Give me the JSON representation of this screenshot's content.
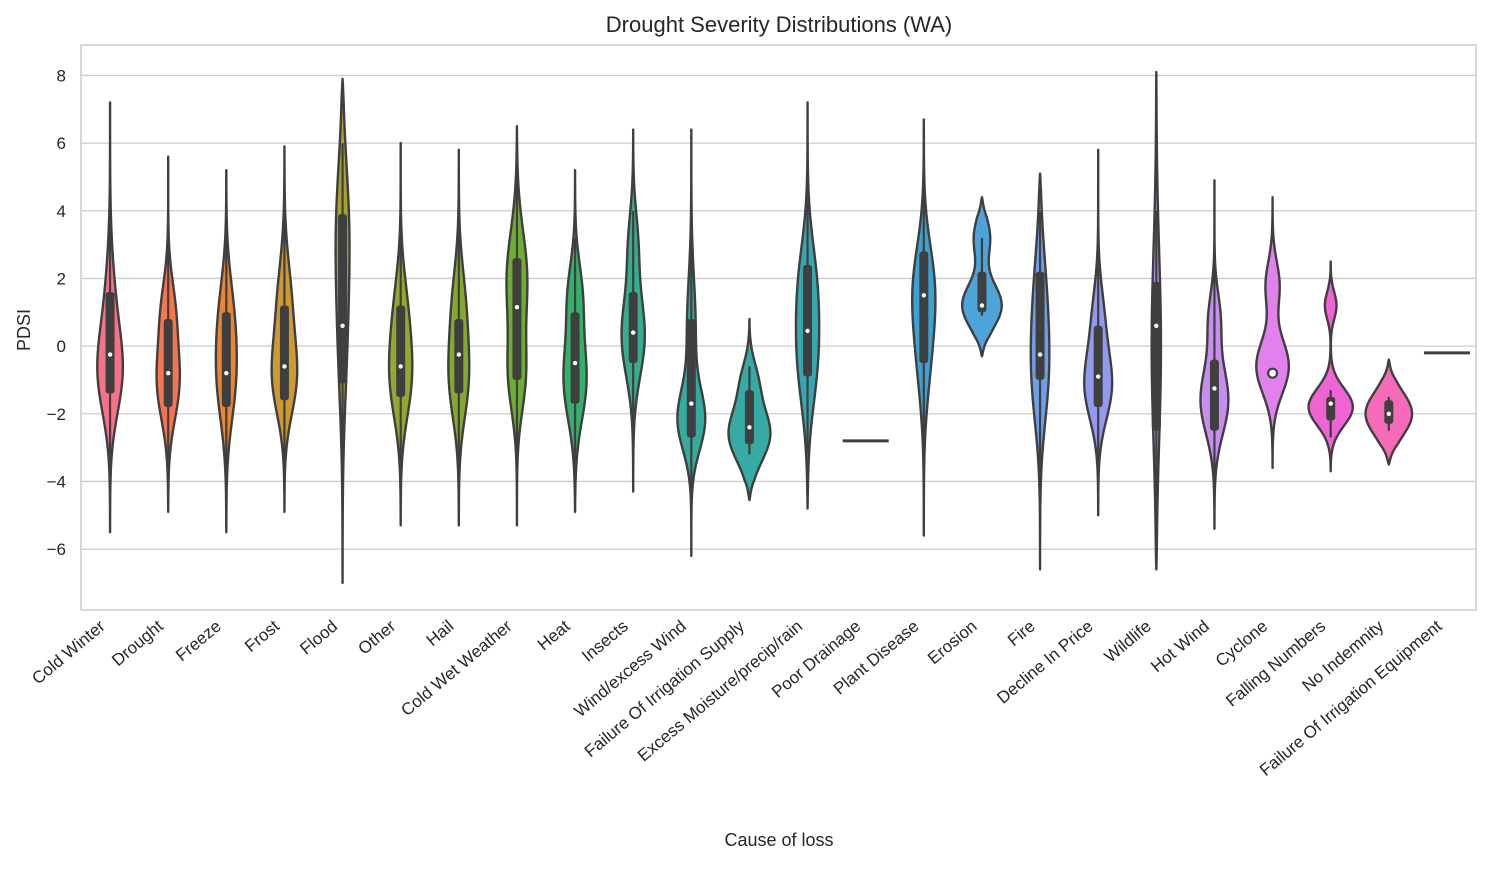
{
  "chart_data": {
    "type": "violin",
    "title": "Drought Severity Distributions (WA)",
    "xlabel": "Cause of loss",
    "ylabel": "PDSI",
    "ylim": [
      -7.8,
      8.9
    ],
    "yticks": [
      -6,
      -4,
      -2,
      0,
      2,
      4,
      6,
      8
    ],
    "grid": true,
    "legend": "none",
    "categories": [
      {
        "name": "Cold Winter",
        "color": "#f77189",
        "min": -5.5,
        "max": 7.2,
        "q1": -1.4,
        "median": -0.25,
        "q3": 1.6,
        "wlo": -3.5,
        "whi": 4.5,
        "peaks": [
          {
            "y": -0.9,
            "w": 0.55,
            "s": 1.2
          },
          {
            "y": 0.8,
            "w": 0.3,
            "s": 1.6
          }
        ]
      },
      {
        "name": "Drought",
        "color": "#f7754f",
        "min": -4.9,
        "max": 5.6,
        "q1": -1.8,
        "median": -0.8,
        "q3": 0.8,
        "wlo": -3.5,
        "whi": 3.2,
        "peaks": [
          {
            "y": -1.1,
            "w": 0.5,
            "s": 1.1
          },
          {
            "y": 1.0,
            "w": 0.3,
            "s": 1.0
          }
        ]
      },
      {
        "name": "Freeze",
        "color": "#e98533",
        "min": -5.5,
        "max": 5.2,
        "q1": -1.8,
        "median": -0.8,
        "q3": 1.0,
        "wlo": -3.8,
        "whi": 3.3,
        "peaks": [
          {
            "y": -1.0,
            "w": 0.45,
            "s": 1.3
          },
          {
            "y": 1.0,
            "w": 0.3,
            "s": 1.2
          }
        ]
      },
      {
        "name": "Frost",
        "color": "#cc9932",
        "min": -4.9,
        "max": 5.9,
        "q1": -1.6,
        "median": -0.6,
        "q3": 1.2,
        "wlo": -3.6,
        "whi": 3.8,
        "peaks": [
          {
            "y": -1.0,
            "w": 0.55,
            "s": 1.1
          },
          {
            "y": 1.2,
            "w": 0.35,
            "s": 1.3
          }
        ]
      },
      {
        "name": "Flood",
        "color": "#a8a031",
        "min": -7.0,
        "max": 7.9,
        "q1": -1.1,
        "median": 0.6,
        "q3": 3.9,
        "wlo": -3.5,
        "whi": 6.0,
        "peaks": [
          {
            "y": 3.5,
            "w": 0.3,
            "s": 2.0
          },
          {
            "y": 0.0,
            "w": 0.18,
            "s": 2.0
          }
        ]
      },
      {
        "name": "Other",
        "color": "#99a531",
        "min": -5.3,
        "max": 6.0,
        "q1": -1.5,
        "median": -0.6,
        "q3": 1.2,
        "wlo": -3.5,
        "whi": 4.0,
        "peaks": [
          {
            "y": -1.0,
            "w": 0.5,
            "s": 1.2
          },
          {
            "y": 1.0,
            "w": 0.3,
            "s": 1.2
          }
        ]
      },
      {
        "name": "Hail",
        "color": "#86a831",
        "min": -5.3,
        "max": 5.8,
        "q1": -1.4,
        "median": -0.25,
        "q3": 0.8,
        "wlo": -3.5,
        "whi": 3.3,
        "peaks": [
          {
            "y": -1.0,
            "w": 0.45,
            "s": 1.2
          },
          {
            "y": 1.2,
            "w": 0.3,
            "s": 1.2
          }
        ]
      },
      {
        "name": "Cold Wet Weather",
        "color": "#6eac32",
        "min": -5.3,
        "max": 6.5,
        "q1": -1.0,
        "median": 1.15,
        "q3": 2.6,
        "wlo": -3.5,
        "whi": 5.0,
        "peaks": [
          {
            "y": 2.0,
            "w": 0.45,
            "s": 1.4
          },
          {
            "y": -0.9,
            "w": 0.35,
            "s": 1.1
          }
        ]
      },
      {
        "name": "Heat",
        "color": "#33b06a",
        "min": -4.9,
        "max": 5.2,
        "q1": -1.7,
        "median": -0.5,
        "q3": 1.0,
        "wlo": -3.5,
        "whi": 3.2,
        "peaks": [
          {
            "y": -1.0,
            "w": 0.5,
            "s": 1.2
          },
          {
            "y": 1.5,
            "w": 0.3,
            "s": 1.0
          }
        ]
      },
      {
        "name": "Insects",
        "color": "#34ae8f",
        "min": -4.3,
        "max": 6.4,
        "q1": -0.5,
        "median": 0.4,
        "q3": 1.6,
        "wlo": -2.5,
        "whi": 4.0,
        "peaks": [
          {
            "y": 0.3,
            "w": 0.5,
            "s": 1.2
          },
          {
            "y": 3.0,
            "w": 0.2,
            "s": 1.0
          }
        ]
      },
      {
        "name": "Wind/excess Wind",
        "color": "#35ab9d",
        "min": -6.2,
        "max": 6.4,
        "q1": -2.7,
        "median": -1.7,
        "q3": 0.8,
        "wlo": -4.2,
        "whi": 3.2,
        "peaks": [
          {
            "y": -2.2,
            "w": 0.6,
            "s": 0.9
          },
          {
            "y": 0.5,
            "w": 0.2,
            "s": 1.5
          }
        ]
      },
      {
        "name": "Failure Of Irrigation Supply",
        "color": "#36aaa5",
        "min": -4.55,
        "max": 0.8,
        "q1": -2.9,
        "median": -2.4,
        "q3": -1.3,
        "wlo": -3.2,
        "whi": -0.6,
        "peaks": [
          {
            "y": -2.6,
            "w": 0.9,
            "s": 0.8
          },
          {
            "y": -1.0,
            "w": 0.3,
            "s": 0.6
          }
        ]
      },
      {
        "name": "Excess Moisture/precip/rain",
        "color": "#37a8b1",
        "min": -4.8,
        "max": 7.2,
        "q1": -0.9,
        "median": 0.45,
        "q3": 2.4,
        "wlo": -3.2,
        "whi": 4.6,
        "peaks": [
          {
            "y": -0.3,
            "w": 0.5,
            "s": 1.5
          },
          {
            "y": 2.0,
            "w": 0.35,
            "s": 1.3
          }
        ]
      },
      {
        "name": "Poor Drainage",
        "color": "#38a6be",
        "min": -2.8,
        "max": -2.8,
        "flat": true
      },
      {
        "name": "Plant Disease",
        "color": "#3aa3d3",
        "min": -5.6,
        "max": 6.7,
        "q1": -0.5,
        "median": 1.5,
        "q3": 2.8,
        "wlo": -3.0,
        "whi": 4.8,
        "peaks": [
          {
            "y": 1.8,
            "w": 0.5,
            "s": 1.3
          },
          {
            "y": -0.3,
            "w": 0.3,
            "s": 1.4
          }
        ]
      },
      {
        "name": "Erosion",
        "color": "#4ca4d9",
        "min": -0.3,
        "max": 4.4,
        "q1": 1.0,
        "median": 1.2,
        "q3": 2.2,
        "wlo": 0.9,
        "whi": 3.2,
        "peaks": [
          {
            "y": 1.2,
            "w": 0.85,
            "s": 0.65
          },
          {
            "y": 3.2,
            "w": 0.35,
            "s": 0.6
          }
        ]
      },
      {
        "name": "Fire",
        "color": "#6f9fe6",
        "min": -6.6,
        "max": 5.1,
        "q1": -1.0,
        "median": -0.25,
        "q3": 2.2,
        "wlo": -3.8,
        "whi": 4.0,
        "peaks": [
          {
            "y": 1.0,
            "w": 0.4,
            "s": 1.8
          },
          {
            "y": -1.2,
            "w": 0.3,
            "s": 1.4
          }
        ]
      },
      {
        "name": "Decline In Price",
        "color": "#9399ed",
        "min": -5.0,
        "max": 5.8,
        "q1": -1.8,
        "median": -0.9,
        "q3": 0.6,
        "wlo": -3.8,
        "whi": 2.6,
        "peaks": [
          {
            "y": -1.2,
            "w": 0.6,
            "s": 1.0
          },
          {
            "y": 0.8,
            "w": 0.25,
            "s": 1.0
          }
        ]
      },
      {
        "name": "Wildlife",
        "color": "#b58ff0",
        "min": -6.6,
        "max": 8.1,
        "q1": -2.5,
        "median": 0.6,
        "q3": 1.9,
        "wlo": -4.5,
        "whi": 4.0,
        "peaks": [
          {
            "y": 0.0,
            "w": 0.2,
            "s": 2.8
          }
        ]
      },
      {
        "name": "Hot Wind",
        "color": "#c98df0",
        "min": -5.4,
        "max": 4.9,
        "q1": -2.5,
        "median": -1.25,
        "q3": -0.4,
        "wlo": -3.9,
        "whi": 2.3,
        "peaks": [
          {
            "y": -1.6,
            "w": 0.6,
            "s": 1.0
          },
          {
            "y": 0.8,
            "w": 0.25,
            "s": 0.8
          }
        ]
      },
      {
        "name": "Cyclone",
        "color": "#e280ec",
        "min": -3.6,
        "max": 4.4,
        "q1": -0.8,
        "median": -0.8,
        "q3": -0.8,
        "wlo": -0.8,
        "whi": -0.8,
        "peaks": [
          {
            "y": -0.6,
            "w": 0.7,
            "s": 0.8
          },
          {
            "y": 1.8,
            "w": 0.3,
            "s": 0.7
          }
        ]
      },
      {
        "name": "Falling Numbers",
        "color": "#f063d5",
        "min": -3.7,
        "max": 2.5,
        "q1": -2.2,
        "median": -1.7,
        "q3": -1.5,
        "wlo": -2.7,
        "whi": -1.3,
        "peaks": [
          {
            "y": -1.8,
            "w": 0.95,
            "s": 0.55
          },
          {
            "y": 1.2,
            "w": 0.25,
            "s": 0.4
          }
        ]
      },
      {
        "name": "No Indemnity",
        "color": "#f56bb8",
        "min": -3.5,
        "max": -0.4,
        "q1": -2.3,
        "median": -2.0,
        "q3": -1.6,
        "wlo": -2.5,
        "whi": -1.5,
        "peaks": [
          {
            "y": -2.0,
            "w": 1.0,
            "s": 0.65
          }
        ]
      },
      {
        "name": "Failure Of Irrigation Equipment",
        "color": "#f5719b",
        "min": -0.2,
        "max": -0.2,
        "flat": true
      }
    ]
  }
}
